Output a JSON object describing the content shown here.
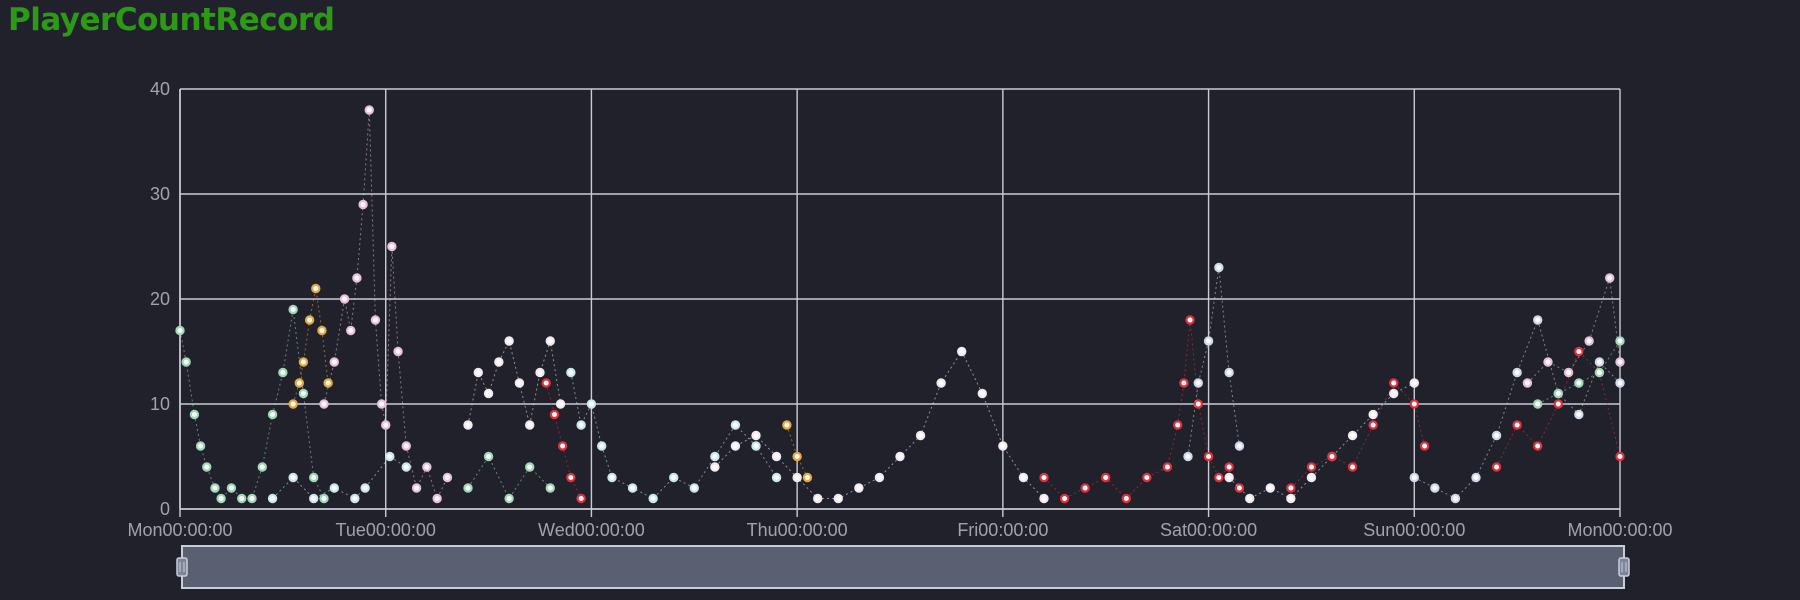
{
  "title": "PlayerCountRecord",
  "colors": {
    "background": "#21212b",
    "title": "#2d9a16",
    "grid": "#c9ccd4",
    "tick_text": "#9ea3ad",
    "slider_fill": "#5a6072",
    "slider_border": "#c8cdd8"
  },
  "chart_data": {
    "type": "scatter",
    "title": "PlayerCountRecord",
    "xlabel": "",
    "ylabel": "",
    "xlim": [
      0,
      7
    ],
    "ylim": [
      0,
      40
    ],
    "grid": true,
    "legend": "none",
    "data_zoom": {
      "start": 0,
      "end": 100,
      "visible": true
    },
    "x_ticks": [
      {
        "value": 0,
        "label": "Mon00:00:00"
      },
      {
        "value": 1,
        "label": "Tue00:00:00"
      },
      {
        "value": 2,
        "label": "Wed00:00:00"
      },
      {
        "value": 3,
        "label": "Thu00:00:00"
      },
      {
        "value": 4,
        "label": "Fri00:00:00"
      },
      {
        "value": 5,
        "label": "Sat00:00:00"
      },
      {
        "value": 6,
        "label": "Sun00:00:00"
      },
      {
        "value": 7,
        "label": "Mon00:00:00"
      }
    ],
    "y_ticks": [
      0,
      10,
      20,
      30,
      40
    ],
    "series": [
      {
        "color": "#9ed8b6",
        "x": [
          0.0,
          0.03,
          0.07,
          0.1,
          0.13,
          0.17,
          0.2,
          0.25,
          0.3,
          0.35,
          0.4,
          0.45,
          0.5,
          0.55,
          0.6,
          0.65,
          0.7
        ],
        "y": [
          17,
          14,
          9,
          6,
          4,
          2,
          1,
          2,
          1,
          1,
          4,
          9,
          13,
          19,
          11,
          3,
          1
        ]
      },
      {
        "color": "#e7a93a",
        "x": [
          0.55,
          0.58,
          0.6,
          0.63,
          0.66,
          0.69,
          0.72
        ],
        "y": [
          10,
          12,
          14,
          18,
          21,
          17,
          12
        ]
      },
      {
        "color": "#e8c0dd",
        "x": [
          0.7,
          0.75,
          0.8,
          0.83,
          0.86,
          0.89,
          0.92,
          0.95,
          0.98,
          1.0,
          1.03,
          1.06,
          1.1,
          1.15,
          1.2,
          1.25,
          1.3
        ],
        "y": [
          10,
          14,
          20,
          17,
          22,
          29,
          38,
          18,
          10,
          8,
          25,
          15,
          6,
          2,
          4,
          1,
          3
        ]
      },
      {
        "color": "#cbe7ee",
        "x": [
          0.45,
          0.55,
          0.65,
          0.75,
          0.85,
          0.9,
          1.02,
          1.1
        ],
        "y": [
          1,
          3,
          1,
          2,
          1,
          2,
          5,
          4
        ]
      },
      {
        "color": "#f3e9f0",
        "x": [
          1.4,
          1.45,
          1.5,
          1.55,
          1.6,
          1.65,
          1.7,
          1.75,
          1.8,
          1.85
        ],
        "y": [
          8,
          13,
          11,
          14,
          16,
          12,
          8,
          13,
          16,
          10
        ]
      },
      {
        "color": "#e0313d",
        "x": [
          1.78,
          1.82,
          1.86,
          1.9,
          1.95
        ],
        "y": [
          12,
          9,
          6,
          3,
          1
        ]
      },
      {
        "color": "#9ed8b6",
        "x": [
          1.4,
          1.5,
          1.6,
          1.7,
          1.8
        ],
        "y": [
          2,
          5,
          1,
          4,
          2
        ]
      },
      {
        "color": "#cbe7ee",
        "x": [
          1.9,
          1.95,
          2.0,
          2.05,
          2.1,
          2.2,
          2.3,
          2.4,
          2.5,
          2.6,
          2.7,
          2.8,
          2.9
        ],
        "y": [
          13,
          8,
          10,
          6,
          3,
          2,
          1,
          3,
          2,
          5,
          8,
          6,
          3
        ]
      },
      {
        "color": "#f3e9f0",
        "x": [
          2.6,
          2.7,
          2.8,
          2.9,
          3.0,
          3.1,
          3.2,
          3.3,
          3.4,
          3.5,
          3.6,
          3.7,
          3.8,
          3.9,
          4.0,
          4.1,
          4.2
        ],
        "y": [
          4,
          6,
          7,
          5,
          3,
          1,
          1,
          2,
          3,
          5,
          7,
          12,
          15,
          11,
          6,
          3,
          1
        ]
      },
      {
        "color": "#e7a93a",
        "x": [
          2.95,
          3.0,
          3.05
        ],
        "y": [
          8,
          5,
          3
        ]
      },
      {
        "color": "#e0313d",
        "x": [
          4.2,
          4.3,
          4.4,
          4.5,
          4.6,
          4.7,
          4.8,
          4.85,
          4.88,
          4.91,
          4.95,
          5.0,
          5.05,
          5.1,
          5.15
        ],
        "y": [
          3,
          1,
          2,
          3,
          1,
          3,
          4,
          8,
          12,
          18,
          10,
          5,
          3,
          4,
          2
        ]
      },
      {
        "color": "#cfd8ee",
        "x": [
          4.9,
          4.95,
          5.0,
          5.05,
          5.1,
          5.15
        ],
        "y": [
          5,
          12,
          16,
          23,
          13,
          6
        ]
      },
      {
        "color": "#f3e9f0",
        "x": [
          5.1,
          5.2,
          5.3,
          5.4,
          5.5,
          5.6,
          5.7,
          5.8,
          5.9,
          6.0
        ],
        "y": [
          3,
          1,
          2,
          1,
          3,
          5,
          7,
          9,
          11,
          12
        ]
      },
      {
        "color": "#e0313d",
        "x": [
          5.4,
          5.5,
          5.6,
          5.7,
          5.8,
          5.9,
          6.0,
          6.05
        ],
        "y": [
          2,
          4,
          5,
          4,
          8,
          12,
          10,
          6
        ]
      },
      {
        "color": "#cfd8ee",
        "x": [
          6.0,
          6.1,
          6.2,
          6.3,
          6.4,
          6.5,
          6.6,
          6.7,
          6.8,
          6.9,
          7.0
        ],
        "y": [
          3,
          2,
          1,
          3,
          7,
          13,
          18,
          11,
          9,
          14,
          12
        ]
      },
      {
        "color": "#e0313d",
        "x": [
          6.4,
          6.5,
          6.6,
          6.7,
          6.8,
          6.9,
          7.0
        ],
        "y": [
          4,
          8,
          6,
          10,
          15,
          13,
          5
        ]
      },
      {
        "color": "#e8c0dd",
        "x": [
          6.55,
          6.65,
          6.75,
          6.85,
          6.95,
          7.0
        ],
        "y": [
          12,
          14,
          13,
          16,
          22,
          14
        ]
      },
      {
        "color": "#9ed8b6",
        "x": [
          6.6,
          6.7,
          6.8,
          6.9,
          7.0
        ],
        "y": [
          10,
          11,
          12,
          13,
          16
        ]
      }
    ]
  }
}
